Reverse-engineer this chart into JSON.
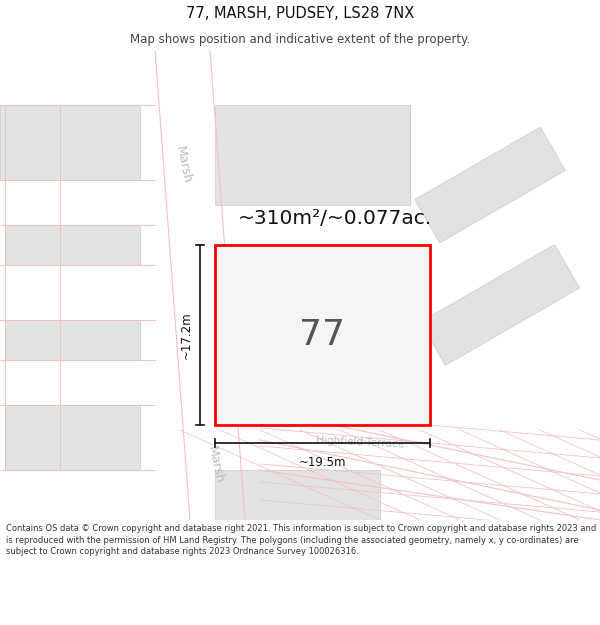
{
  "title": "77, MARSH, PUDSEY, LS28 7NX",
  "subtitle": "Map shows position and indicative extent of the property.",
  "area_text": "~310m²/~0.077ac.",
  "width_label": "~19.5m",
  "height_label": "~17.2m",
  "property_number": "77",
  "street_name_top": "Marsh",
  "street_name_bottom": "Marsh",
  "road_name": "Highfield Terrace",
  "footer": "Contains OS data © Crown copyright and database right 2021. This information is subject to Crown copyright and database rights 2023 and is reproduced with the permission of HM Land Registry. The polygons (including the associated geometry, namely x, y co-ordinates) are subject to Crown copyright and database rights 2023 Ordnance Survey 100026316.",
  "bg_color": "#ffffff",
  "map_bg": "#f7f7f7",
  "plot_outline": "#ff0000",
  "block_color": "#e2e2e2",
  "block_outline": "#c8c8c8",
  "road_pink": "#f5c0c0",
  "street_label_color": "#bbbbbb",
  "dim_color": "#111111",
  "text_dark": "#111111"
}
